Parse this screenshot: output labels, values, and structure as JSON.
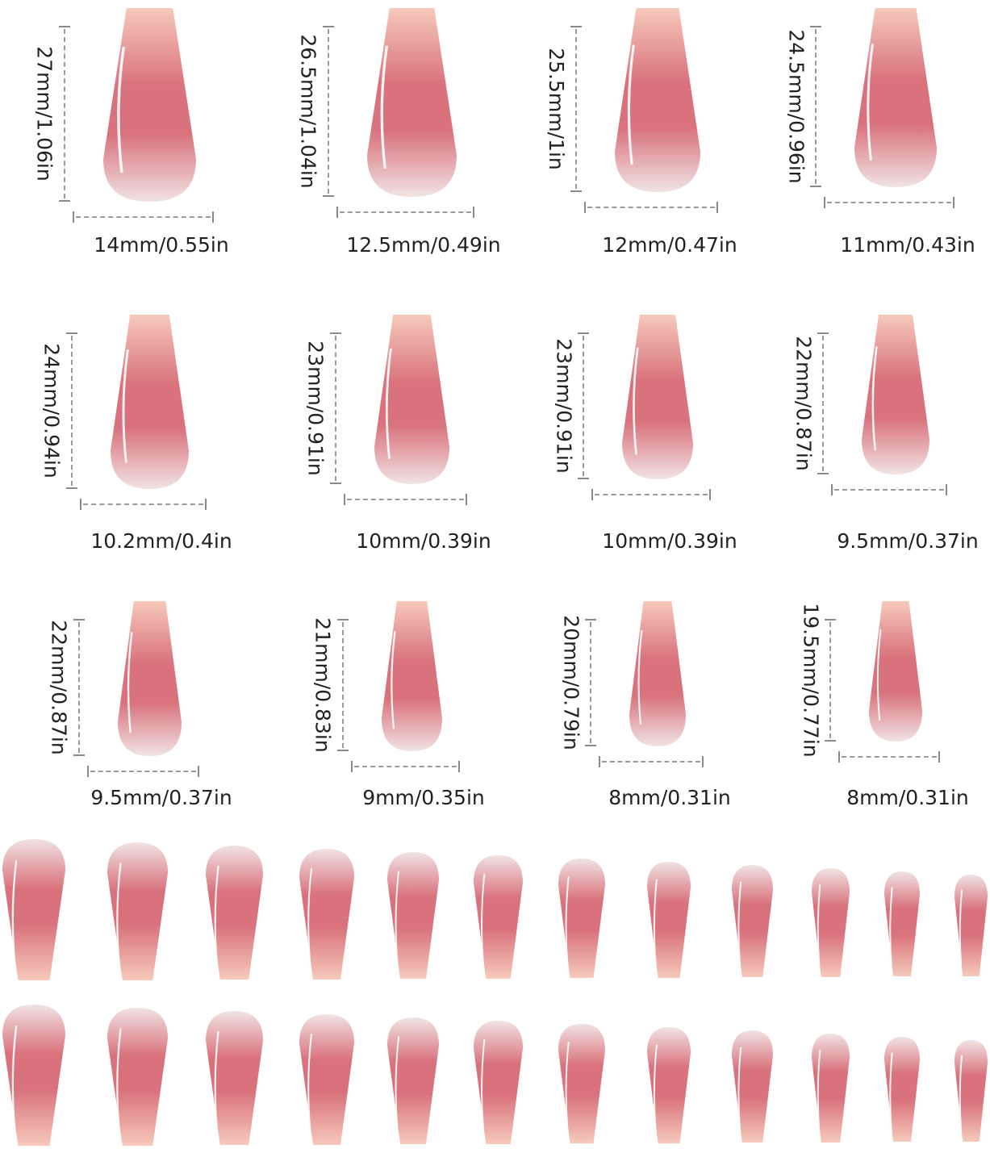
{
  "colors": {
    "nail_tip": "#f6c9bb",
    "nail_mid": "#d9727c",
    "nail_base": "#f1e3e3",
    "dimension_line": "#9a9a9a",
    "label_text": "#222222"
  },
  "sizes": [
    {
      "length": "27mm/1.06in",
      "width": "14mm/0.55in"
    },
    {
      "length": "26.5mm/1.04in",
      "width": "12.5mm/0.49in"
    },
    {
      "length": "25.5mm/1in",
      "width": "12mm/0.47in"
    },
    {
      "length": "24.5mm/0.96in",
      "width": "11mm/0.43in"
    },
    {
      "length": "24mm/0.94in",
      "width": "10.2mm/0.4in"
    },
    {
      "length": "23mm/0.91in",
      "width": "10mm/0.39in"
    },
    {
      "length": "23mm/0.91in",
      "width": "10mm/0.39in"
    },
    {
      "length": "22mm/0.87in",
      "width": "9.5mm/0.37in"
    },
    {
      "length": "22mm/0.87in",
      "width": "9.5mm/0.37in"
    },
    {
      "length": "21mm/0.83in",
      "width": "9mm/0.35in"
    },
    {
      "length": "20mm/0.79in",
      "width": "8mm/0.31in"
    },
    {
      "length": "19.5mm/0.77in",
      "width": "8mm/0.31in"
    }
  ]
}
